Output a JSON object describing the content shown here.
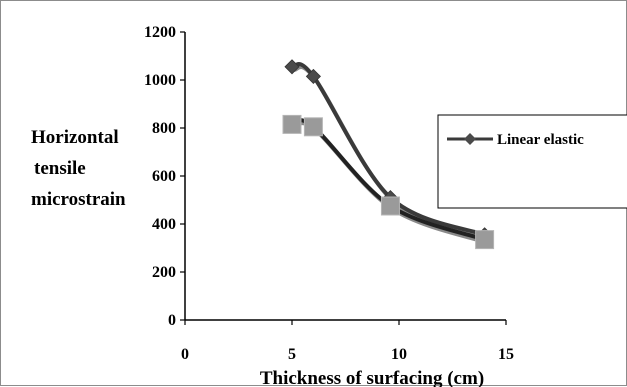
{
  "chart_data": {
    "type": "line",
    "title": "",
    "xlabel": "Thickness of surfacing (cm)",
    "ylabel_lines": [
      "Horizontal",
      "tensile",
      "microstrain"
    ],
    "xlim": [
      0,
      15
    ],
    "ylim": [
      0,
      1200
    ],
    "x_ticks": [
      "0",
      "5",
      "10",
      "15"
    ],
    "y_ticks": [
      "0",
      "200",
      "400",
      "600",
      "800",
      "1000",
      "1200"
    ],
    "grid": false,
    "legend_position": "right",
    "series": [
      {
        "name": "Linear elastic",
        "marker": "diamond",
        "color": "#3a3a3a",
        "x": [
          5,
          6,
          9.6,
          14
        ],
        "y": [
          1055,
          1015,
          510,
          355
        ]
      },
      {
        "name": "",
        "marker": "square",
        "color": "#9a9a9a",
        "line_color": "#222222",
        "x": [
          5,
          6,
          9.6,
          14
        ],
        "y": [
          815,
          805,
          475,
          335
        ]
      }
    ]
  }
}
